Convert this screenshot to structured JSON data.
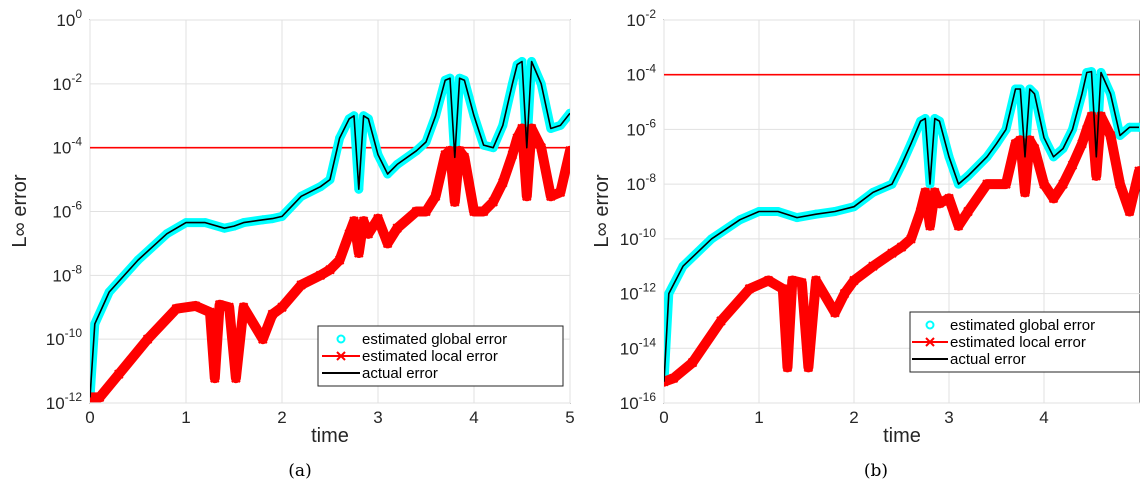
{
  "chart_data": [
    {
      "type": "line",
      "caption": "(a)",
      "xlabel": "time",
      "ylabel": "L∞ error",
      "yscale": "log",
      "xlim": [
        0,
        5
      ],
      "ylim_exp": [
        -12,
        0
      ],
      "xticks": [
        "0",
        "1",
        "2",
        "3",
        "4",
        "5"
      ],
      "yticks": [
        -12,
        -10,
        -8,
        -6,
        -4,
        -2,
        0
      ],
      "grid": true,
      "legend_position": "bottom-right",
      "reference_line": {
        "y": 0.0001,
        "color": "#ff0000"
      },
      "series": [
        {
          "name": "estimated global error",
          "marker": "circle",
          "color": "#00ffff",
          "x": [
            0,
            0.05,
            0.2,
            0.5,
            0.8,
            1.0,
            1.2,
            1.4,
            1.5,
            1.6,
            1.8,
            1.9,
            2.0,
            2.2,
            2.4,
            2.5,
            2.6,
            2.7,
            2.75,
            2.8,
            2.85,
            2.9,
            3.0,
            3.1,
            3.2,
            3.4,
            3.5,
            3.6,
            3.7,
            3.75,
            3.8,
            3.85,
            3.9,
            4.0,
            4.1,
            4.2,
            4.3,
            4.4,
            4.45,
            4.5,
            4.55,
            4.6,
            4.7,
            4.8,
            4.9,
            5.0
          ],
          "y": [
            1.5e-12,
            3e-10,
            3e-09,
            3e-08,
            2e-07,
            4.5e-07,
            4.5e-07,
            3e-07,
            3.5e-07,
            4.5e-07,
            5.5e-07,
            6e-07,
            7e-07,
            3e-06,
            6e-06,
            1e-05,
            0.0002,
            0.0008,
            0.001,
            5e-06,
            0.001,
            0.0008,
            6e-05,
            1.5e-05,
            3e-05,
            8e-05,
            0.00015,
            0.001,
            0.013,
            0.015,
            5e-05,
            0.015,
            0.013,
            0.001,
            0.00012,
            0.0001,
            0.0005,
            0.01,
            0.04,
            0.05,
            0.0001,
            0.05,
            0.01,
            0.0004,
            0.0005,
            0.0012
          ]
        },
        {
          "name": "estimated local error",
          "marker": "x",
          "color": "#ff0000",
          "x": [
            0,
            0.1,
            0.3,
            0.6,
            0.9,
            1.1,
            1.25,
            1.3,
            1.35,
            1.45,
            1.52,
            1.6,
            1.8,
            1.9,
            2.0,
            2.2,
            2.4,
            2.5,
            2.6,
            2.7,
            2.75,
            2.8,
            2.85,
            2.9,
            3.0,
            3.1,
            3.2,
            3.4,
            3.5,
            3.6,
            3.7,
            3.75,
            3.8,
            3.85,
            3.9,
            4.0,
            4.1,
            4.2,
            4.3,
            4.4,
            4.45,
            4.5,
            4.55,
            4.6,
            4.7,
            4.8,
            4.9,
            5.0
          ],
          "y": [
            1.5e-12,
            1.5e-12,
            8e-12,
            1e-10,
            9e-10,
            1.1e-09,
            7e-10,
            6e-12,
            1.2e-09,
            1e-09,
            6e-12,
            1e-09,
            1e-10,
            6e-10,
            1e-09,
            5e-09,
            1e-08,
            1.5e-08,
            3e-08,
            2e-07,
            5e-07,
            5e-08,
            5e-07,
            2e-07,
            6e-07,
            1e-07,
            3e-07,
            1e-06,
            1e-06,
            3e-06,
            6e-05,
            8e-05,
            2e-06,
            8e-05,
            5e-05,
            1e-06,
            1e-06,
            2e-06,
            8e-06,
            6e-05,
            0.0002,
            0.0004,
            3e-06,
            0.0004,
            0.0001,
            3e-06,
            4e-06,
            8e-05
          ]
        },
        {
          "name": "actual error",
          "marker": "none",
          "color": "#000000",
          "x": [
            0,
            0.05,
            0.2,
            0.5,
            0.8,
            1.0,
            1.2,
            1.4,
            1.5,
            1.6,
            1.8,
            1.9,
            2.0,
            2.2,
            2.4,
            2.5,
            2.6,
            2.7,
            2.75,
            2.8,
            2.85,
            2.9,
            3.0,
            3.1,
            3.2,
            3.4,
            3.5,
            3.6,
            3.7,
            3.75,
            3.8,
            3.85,
            3.9,
            4.0,
            4.1,
            4.2,
            4.3,
            4.4,
            4.45,
            4.5,
            4.55,
            4.6,
            4.7,
            4.8,
            4.9,
            5.0
          ],
          "y": [
            1.5e-12,
            3e-10,
            3e-09,
            3e-08,
            2e-07,
            4.5e-07,
            4.5e-07,
            3e-07,
            3.5e-07,
            4.5e-07,
            5.5e-07,
            6e-07,
            7e-07,
            3e-06,
            6e-06,
            1e-05,
            0.0002,
            0.0008,
            0.001,
            5e-06,
            0.001,
            0.0008,
            6e-05,
            1.5e-05,
            3e-05,
            8e-05,
            0.00015,
            0.001,
            0.013,
            0.015,
            5e-05,
            0.015,
            0.013,
            0.001,
            0.00012,
            0.0001,
            0.0005,
            0.01,
            0.04,
            0.05,
            0.0001,
            0.05,
            0.01,
            0.0004,
            0.0005,
            0.0012
          ]
        }
      ]
    },
    {
      "type": "line",
      "caption": "(b)",
      "xlabel": "time",
      "ylabel": "L∞ error",
      "yscale": "log",
      "xlim": [
        0,
        5
      ],
      "ylim_exp": [
        -16,
        -2
      ],
      "xticks": [
        "0",
        "1",
        "2",
        "3",
        "4"
      ],
      "yticks": [
        -16,
        -14,
        -12,
        -10,
        -8,
        -6,
        -4,
        -2
      ],
      "grid": true,
      "legend_position": "bottom-right",
      "reference_line": {
        "y": 0.0001,
        "color": "#ff0000"
      },
      "series": [
        {
          "name": "estimated global error",
          "marker": "circle",
          "color": "#00ffff",
          "x": [
            0,
            0.05,
            0.2,
            0.5,
            0.8,
            1.0,
            1.2,
            1.4,
            1.6,
            1.8,
            2.0,
            2.2,
            2.4,
            2.5,
            2.6,
            2.7,
            2.75,
            2.8,
            2.85,
            2.9,
            3.0,
            3.1,
            3.2,
            3.4,
            3.5,
            3.6,
            3.7,
            3.75,
            3.8,
            3.85,
            3.9,
            4.0,
            4.1,
            4.2,
            4.3,
            4.4,
            4.45,
            4.5,
            4.55,
            4.6,
            4.7,
            4.8,
            4.9,
            5.0
          ],
          "y": [
            6e-16,
            1e-12,
            1e-11,
            1e-10,
            5e-10,
            1e-09,
            1e-09,
            6e-10,
            8e-10,
            1e-09,
            1.5e-09,
            5e-09,
            1e-08,
            5e-08,
            3e-07,
            2e-06,
            2.5e-06,
            1e-08,
            2.5e-06,
            2e-06,
            1e-07,
            1e-08,
            2e-08,
            1e-07,
            3e-07,
            1e-06,
            3e-05,
            3e-05,
            1e-07,
            3e-05,
            2e-05,
            5e-07,
            1e-07,
            2e-07,
            1e-06,
            2e-05,
            0.00012,
            0.00013,
            1e-07,
            0.00012,
            2e-05,
            6e-07,
            1.2e-06,
            1.2e-06
          ]
        },
        {
          "name": "estimated local error",
          "marker": "x",
          "color": "#ff0000",
          "x": [
            0,
            0.1,
            0.3,
            0.6,
            0.9,
            1.1,
            1.25,
            1.3,
            1.35,
            1.45,
            1.52,
            1.6,
            1.8,
            1.9,
            2.0,
            2.2,
            2.4,
            2.5,
            2.6,
            2.7,
            2.75,
            2.8,
            2.85,
            2.9,
            3.0,
            3.1,
            3.2,
            3.4,
            3.5,
            3.6,
            3.7,
            3.75,
            3.8,
            3.85,
            3.9,
            4.0,
            4.1,
            4.2,
            4.3,
            4.4,
            4.45,
            4.5,
            4.55,
            4.6,
            4.7,
            4.8,
            4.9,
            5.0
          ],
          "y": [
            6e-16,
            8e-16,
            3e-15,
            1e-13,
            1.5e-12,
            3e-12,
            1.5e-12,
            2e-15,
            3e-12,
            2.5e-12,
            2e-15,
            3e-12,
            2e-13,
            1e-12,
            3e-12,
            1e-11,
            3e-11,
            5e-11,
            1e-10,
            1e-09,
            5e-09,
            3e-10,
            5e-09,
            2e-09,
            3e-09,
            3e-10,
            1e-09,
            1e-08,
            1e-08,
            1e-08,
            3e-07,
            4e-07,
            5e-09,
            4e-07,
            2e-07,
            1e-08,
            3e-09,
            1e-08,
            5e-08,
            3e-07,
            1e-06,
            3e-06,
            2e-08,
            3e-06,
            6e-07,
            1e-08,
            1e-09,
            3e-08
          ]
        },
        {
          "name": "actual error",
          "marker": "none",
          "color": "#000000",
          "x": [
            0,
            0.05,
            0.2,
            0.5,
            0.8,
            1.0,
            1.2,
            1.4,
            1.6,
            1.8,
            2.0,
            2.2,
            2.4,
            2.5,
            2.6,
            2.7,
            2.75,
            2.8,
            2.85,
            2.9,
            3.0,
            3.1,
            3.2,
            3.4,
            3.5,
            3.6,
            3.7,
            3.75,
            3.8,
            3.85,
            3.9,
            4.0,
            4.1,
            4.2,
            4.3,
            4.4,
            4.45,
            4.5,
            4.55,
            4.6,
            4.7,
            4.8,
            4.9,
            5.0
          ],
          "y": [
            6e-16,
            1e-12,
            1e-11,
            1e-10,
            5e-10,
            1e-09,
            1e-09,
            6e-10,
            8e-10,
            1e-09,
            1.5e-09,
            5e-09,
            1e-08,
            5e-08,
            3e-07,
            2e-06,
            2.5e-06,
            1e-08,
            2.5e-06,
            2e-06,
            1e-07,
            1e-08,
            2e-08,
            1e-07,
            3e-07,
            1e-06,
            3e-05,
            3e-05,
            1e-07,
            3e-05,
            2e-05,
            5e-07,
            1e-07,
            2e-07,
            1e-06,
            2e-05,
            0.00012,
            0.00013,
            1e-07,
            0.00012,
            2e-05,
            6e-07,
            1.2e-06,
            1.2e-06
          ]
        }
      ]
    }
  ]
}
